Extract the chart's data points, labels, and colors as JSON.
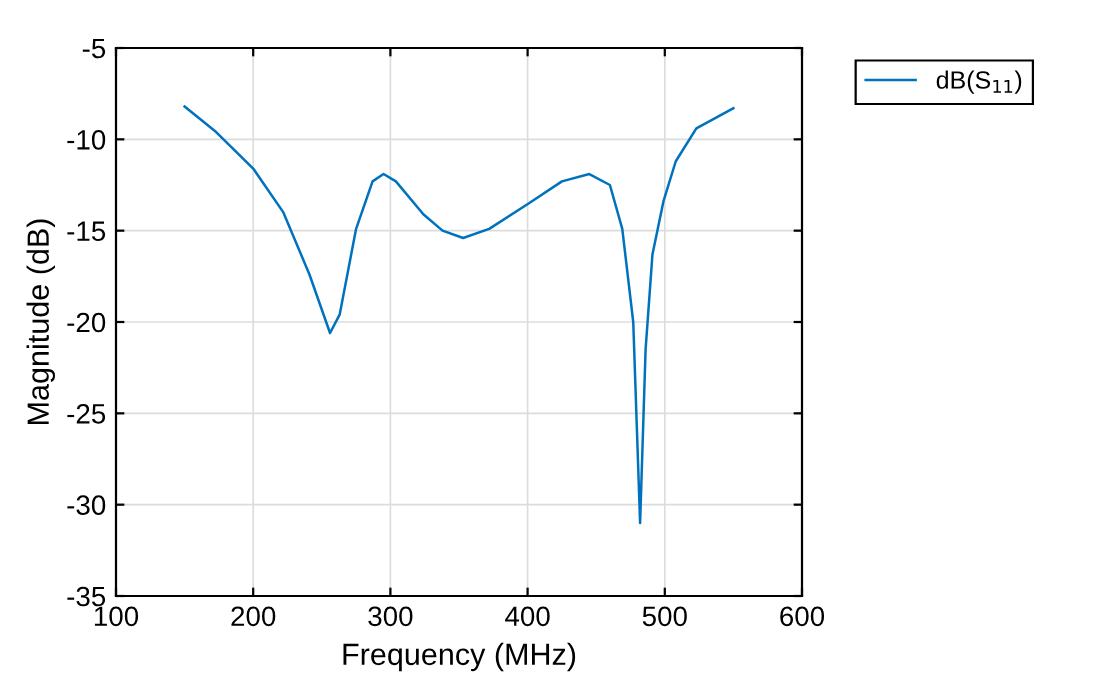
{
  "chart_data": {
    "type": "line",
    "xlabel": "Frequency (MHz)",
    "ylabel": "Magnitude (dB)",
    "xlim": [
      100,
      600
    ],
    "xticks": [
      100,
      200,
      300,
      400,
      500,
      600
    ],
    "ylim": [
      -35,
      -5
    ],
    "yticks": [
      -35,
      -30,
      -25,
      -20,
      -15,
      -10,
      -5
    ],
    "grid": true,
    "legend": "top right",
    "series": [
      {
        "name": "dB(S$_{11}$)",
        "color": "#0072bd",
        "x": [
          150,
          173,
          200,
          222,
          241,
          256,
          263,
          275,
          287,
          295,
          304,
          324,
          338,
          353,
          372,
          401,
          425,
          445,
          460,
          469,
          477,
          482,
          486,
          491,
          499,
          508,
          523,
          550
        ],
        "values": [
          -8.2,
          -9.6,
          -11.6,
          -14.0,
          -17.4,
          -20.6,
          -19.6,
          -14.9,
          -12.3,
          -11.9,
          -12.3,
          -14.1,
          -15.0,
          -15.4,
          -14.9,
          -13.5,
          -12.3,
          -11.9,
          -12.5,
          -14.9,
          -20.0,
          -31.0,
          -21.5,
          -16.3,
          -13.4,
          -11.2,
          -9.4,
          -8.3
        ]
      }
    ]
  }
}
